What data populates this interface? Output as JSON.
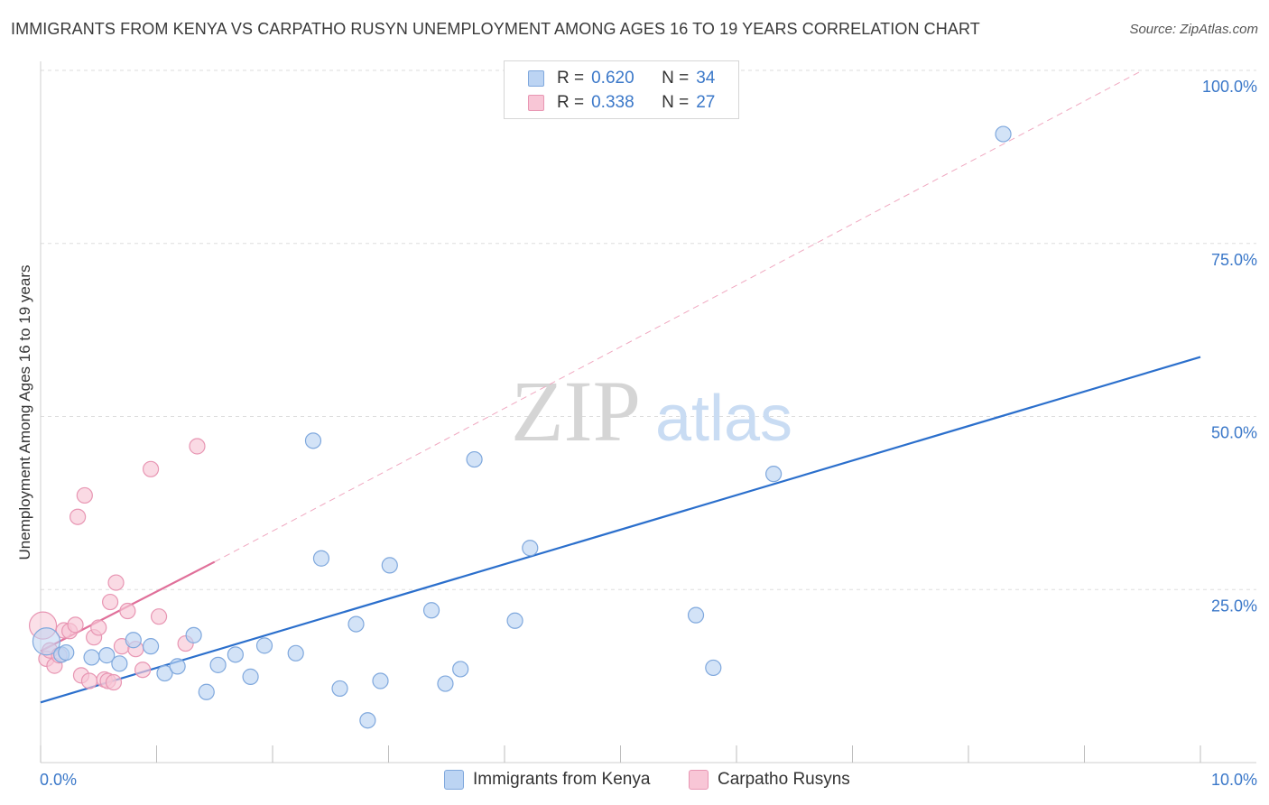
{
  "title": "IMMIGRANTS FROM KENYA VS CARPATHO RUSYN UNEMPLOYMENT AMONG AGES 16 TO 19 YEARS CORRELATION CHART",
  "source": "Source: ZipAtlas.com",
  "watermark": {
    "zip": "ZIP",
    "atlas": "atlas"
  },
  "legend": {
    "series1": {
      "r_label": "R =",
      "r_value": "0.620",
      "n_label": "N =",
      "n_value": "34"
    },
    "series2": {
      "r_label": "R =",
      "r_value": "0.338",
      "n_label": "N =",
      "n_value": "27"
    }
  },
  "bottom_legend": {
    "series1": "Immigrants from Kenya",
    "series2": "Carpatho Rusyns"
  },
  "colors": {
    "blue_fill": "#bcd4f3",
    "blue_stroke": "#7fa8dd",
    "blue_line": "#2b6fcc",
    "pink_fill": "#f8c6d6",
    "pink_stroke": "#e896b3",
    "pink_line": "#e0709a",
    "tick_text": "#3b78c9",
    "grid": "#dedede"
  },
  "chart_data": {
    "type": "scatter",
    "title": "IMMIGRANTS FROM KENYA VS CARPATHO RUSYN UNEMPLOYMENT AMONG AGES 16 TO 19 YEARS CORRELATION CHART",
    "xlabel": "",
    "ylabel": "Unemployment Among Ages 16 to 19 years",
    "xlim": [
      0,
      10
    ],
    "ylim": [
      0,
      100
    ],
    "x_tick_labels": [
      {
        "value": 0,
        "label": "0.0%"
      },
      {
        "value": 10,
        "label": "10.0%"
      }
    ],
    "y_tick_labels": [
      {
        "value": 25,
        "label": "25.0%"
      },
      {
        "value": 50,
        "label": "50.0%"
      },
      {
        "value": 75,
        "label": "75.0%"
      },
      {
        "value": 100,
        "label": "100.0%"
      }
    ],
    "series": [
      {
        "name": "Immigrants from Kenya",
        "r": 0.62,
        "n": 34,
        "points": [
          [
            0.05,
            17.5
          ],
          [
            0.18,
            15.6
          ],
          [
            0.22,
            15.9
          ],
          [
            0.44,
            15.2
          ],
          [
            0.57,
            15.5
          ],
          [
            0.68,
            14.3
          ],
          [
            0.8,
            17.7
          ],
          [
            0.95,
            16.8
          ],
          [
            1.07,
            12.9
          ],
          [
            1.18,
            13.9
          ],
          [
            1.32,
            18.4
          ],
          [
            1.43,
            10.2
          ],
          [
            1.53,
            14.1
          ],
          [
            1.68,
            15.6
          ],
          [
            1.81,
            12.4
          ],
          [
            1.93,
            16.9
          ],
          [
            2.2,
            15.8
          ],
          [
            2.35,
            46.5
          ],
          [
            2.42,
            29.5
          ],
          [
            2.58,
            10.7
          ],
          [
            2.72,
            20.0
          ],
          [
            2.82,
            6.1
          ],
          [
            2.93,
            11.8
          ],
          [
            3.01,
            28.5
          ],
          [
            3.37,
            22.0
          ],
          [
            3.49,
            11.4
          ],
          [
            3.62,
            13.5
          ],
          [
            3.74,
            43.8
          ],
          [
            4.09,
            20.5
          ],
          [
            4.22,
            31.0
          ],
          [
            5.65,
            21.3
          ],
          [
            5.8,
            13.7
          ],
          [
            6.32,
            41.7
          ],
          [
            8.3,
            90.8
          ]
        ],
        "trend": {
          "x": [
            0,
            10
          ],
          "y": [
            8.7,
            58.6
          ]
        }
      },
      {
        "name": "Carpatho Rusyns",
        "r": 0.338,
        "n": 27,
        "points": [
          [
            0.02,
            19.8
          ],
          [
            0.05,
            15.0
          ],
          [
            0.08,
            16.2
          ],
          [
            0.12,
            14.0
          ],
          [
            0.16,
            15.5
          ],
          [
            0.2,
            19.1
          ],
          [
            0.25,
            19.0
          ],
          [
            0.3,
            19.9
          ],
          [
            0.32,
            35.5
          ],
          [
            0.35,
            12.6
          ],
          [
            0.38,
            38.6
          ],
          [
            0.42,
            11.8
          ],
          [
            0.46,
            18.1
          ],
          [
            0.5,
            19.5
          ],
          [
            0.55,
            12.0
          ],
          [
            0.58,
            11.8
          ],
          [
            0.6,
            23.2
          ],
          [
            0.63,
            11.6
          ],
          [
            0.65,
            26.0
          ],
          [
            0.7,
            16.8
          ],
          [
            0.75,
            21.9
          ],
          [
            0.82,
            16.4
          ],
          [
            0.88,
            13.4
          ],
          [
            0.95,
            42.4
          ],
          [
            1.02,
            21.1
          ],
          [
            1.25,
            17.2
          ],
          [
            1.35,
            45.7
          ]
        ],
        "trend": {
          "x": [
            0,
            1.5
          ],
          "y": [
            16.1,
            29.0
          ]
        },
        "trend_extension": {
          "x": [
            1.5,
            9.5
          ],
          "y": [
            29.0,
            100.0
          ]
        }
      }
    ]
  }
}
